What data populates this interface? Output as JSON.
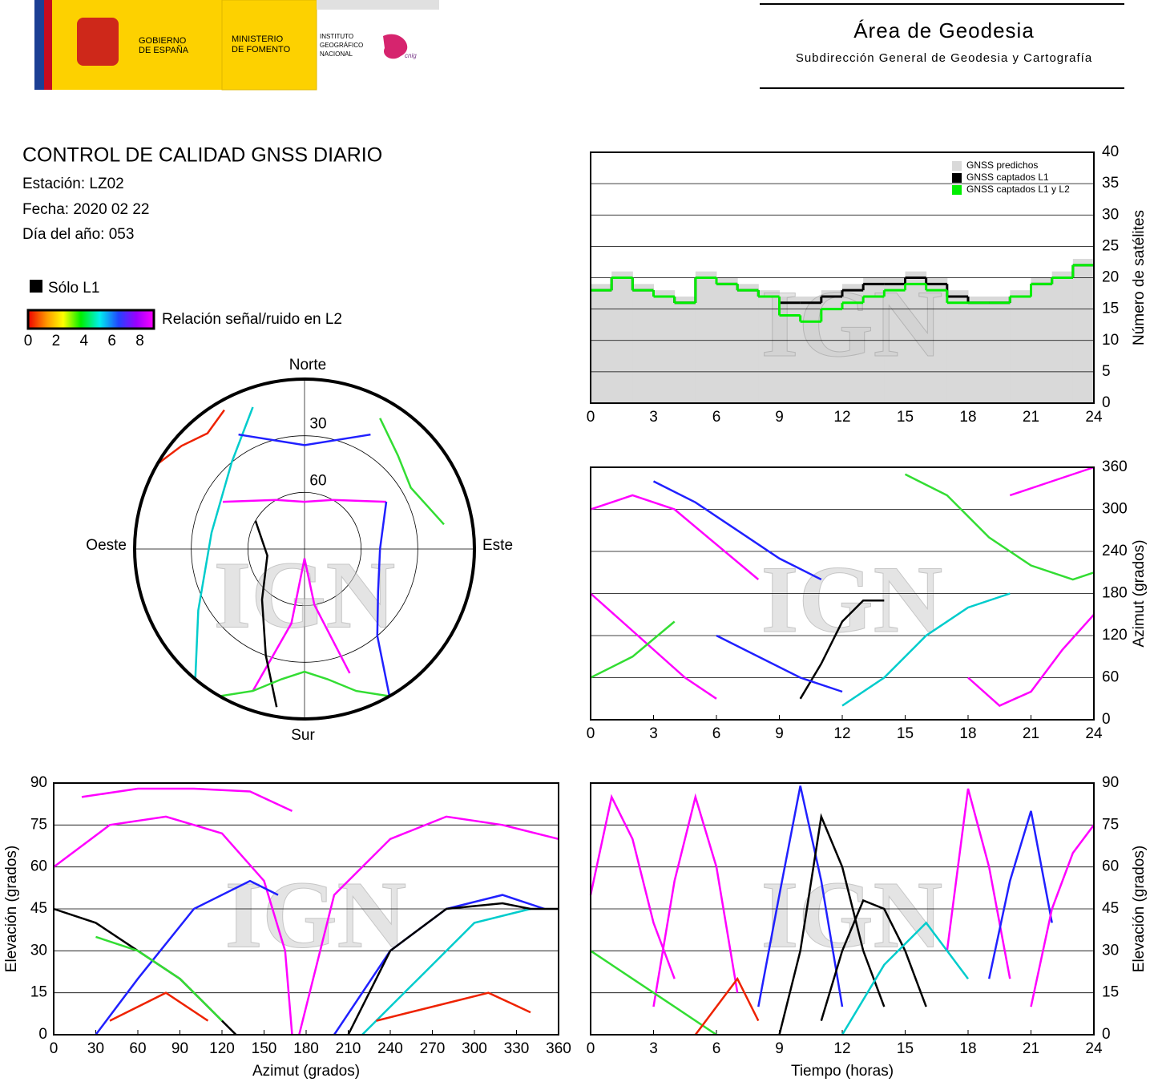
{
  "header": {
    "gobierno": [
      "GOBIERNO",
      "DE ESPAÑA"
    ],
    "ministerio": [
      "MINISTERIO",
      "DE FOMENTO"
    ],
    "instituto": [
      "INSTITUTO",
      "GEOGRÁFICO",
      "NACIONAL"
    ],
    "cnig": "cnig",
    "area": "Área de Geodesia",
    "subdireccion": "Subdirección General de Geodesia y Cartografía"
  },
  "report": {
    "title": "CONTROL DE CALIDAD GNSS DIARIO",
    "station": "Estación: LZ02",
    "date": "Fecha: 2020 02 22",
    "doy": "Día del año: 053",
    "legend_l1": "Sólo L1",
    "legend_snr": "Relación señal/ruido en L2",
    "snr_ticks": [
      0,
      2,
      4,
      6,
      8
    ],
    "snr_lim": [
      0,
      9
    ]
  },
  "watermark": "IGN",
  "chart_data": [
    {
      "type": "step",
      "ylabel": "Número de satélites",
      "y_axis": "right",
      "legend": "top-right",
      "grid": true,
      "xlim": [
        0,
        24
      ],
      "xticks": [
        0,
        3,
        6,
        9,
        12,
        15,
        18,
        21,
        24
      ],
      "ylim": [
        0,
        40
      ],
      "yticks": [
        0,
        5,
        10,
        15,
        20,
        25,
        30,
        35,
        40
      ],
      "x": [
        0,
        1,
        2,
        3,
        4,
        5,
        6,
        7,
        8,
        9,
        10,
        11,
        12,
        13,
        14,
        15,
        16,
        17,
        18,
        19,
        20,
        21,
        22,
        23
      ],
      "series": [
        {
          "name": "GNSS predichos",
          "color": "#d9d9d9",
          "style": "area",
          "values": [
            19,
            21,
            19,
            18,
            17,
            21,
            20,
            19,
            18,
            17,
            17,
            18,
            19,
            20,
            20,
            21,
            20,
            18,
            17,
            17,
            18,
            20,
            21,
            23
          ]
        },
        {
          "name": "GNSS captados L1",
          "color": "#000000",
          "style": "line",
          "values": [
            18,
            20,
            18,
            17,
            16,
            20,
            19,
            18,
            17,
            16,
            16,
            17,
            18,
            19,
            19,
            20,
            19,
            17,
            16,
            16,
            17,
            19,
            20,
            22
          ]
        },
        {
          "name": "GNSS captados L1 y L2",
          "color": "#00ee00",
          "style": "line",
          "values": [
            18,
            20,
            18,
            17,
            16,
            20,
            19,
            18,
            17,
            14,
            13,
            15,
            16,
            17,
            18,
            19,
            18,
            16,
            16,
            16,
            17,
            19,
            20,
            22
          ]
        }
      ]
    },
    {
      "type": "track",
      "ylabel": "Azimut (grados)",
      "y_axis": "right",
      "grid": true,
      "xlim": [
        0,
        24
      ],
      "xticks": [
        0,
        3,
        6,
        9,
        12,
        15,
        18,
        21,
        24
      ],
      "ylim": [
        0,
        360
      ],
      "yticks": [
        0,
        60,
        120,
        180,
        240,
        300,
        360
      ],
      "series": [
        {
          "color": "#ff00ff",
          "x": [
            0,
            2,
            4,
            6,
            8
          ],
          "values": [
            300,
            320,
            300,
            250,
            200
          ]
        },
        {
          "color": "#ff00ff",
          "x": [
            0,
            1.5,
            3,
            4.5,
            6
          ],
          "values": [
            180,
            140,
            100,
            60,
            30
          ]
        },
        {
          "color": "#000000",
          "x": [
            10,
            11,
            12,
            13,
            14
          ],
          "values": [
            30,
            80,
            140,
            170,
            170
          ]
        },
        {
          "color": "#2020ff",
          "x": [
            3,
            5,
            7,
            9,
            11
          ],
          "values": [
            340,
            310,
            270,
            230,
            200
          ]
        },
        {
          "color": "#00cccc",
          "x": [
            12,
            14,
            16,
            18,
            20
          ],
          "values": [
            20,
            60,
            120,
            160,
            180
          ]
        },
        {
          "color": "#33dd33",
          "x": [
            15,
            17,
            19,
            21,
            23,
            24
          ],
          "values": [
            350,
            320,
            260,
            220,
            200,
            210
          ]
        },
        {
          "color": "#ff00ff",
          "x": [
            18,
            19.5,
            21,
            22.5,
            24
          ],
          "values": [
            60,
            20,
            40,
            100,
            150
          ]
        },
        {
          "color": "#2020ff",
          "x": [
            6,
            8,
            10,
            12
          ],
          "values": [
            120,
            90,
            60,
            40
          ]
        },
        {
          "color": "#33dd33",
          "x": [
            0,
            2,
            4
          ],
          "values": [
            60,
            90,
            140
          ]
        },
        {
          "color": "#ff00ff",
          "x": [
            20,
            22,
            24
          ],
          "values": [
            320,
            340,
            360
          ]
        }
      ]
    },
    {
      "type": "track",
      "xlabel": "Azimut (grados)",
      "ylabel": "Elevación (grados)",
      "y_axis": "left",
      "grid": true,
      "xlim": [
        0,
        360
      ],
      "xticks": [
        0,
        30,
        60,
        90,
        120,
        150,
        180,
        210,
        240,
        270,
        300,
        330,
        360
      ],
      "ylim": [
        0,
        90
      ],
      "yticks": [
        0,
        15,
        30,
        45,
        60,
        75,
        90
      ],
      "series": [
        {
          "color": "#ff00ff",
          "x": [
            20,
            60,
            100,
            140,
            170
          ],
          "values": [
            85,
            88,
            88,
            87,
            80
          ]
        },
        {
          "color": "#ff00ff",
          "x": [
            0,
            40,
            80,
            120,
            150,
            165,
            170
          ],
          "values": [
            60,
            75,
            78,
            72,
            55,
            30,
            0
          ]
        },
        {
          "color": "#ff00ff",
          "x": [
            175,
            200,
            240,
            280,
            320,
            360
          ],
          "values": [
            0,
            50,
            70,
            78,
            75,
            70
          ]
        },
        {
          "color": "#000000",
          "x": [
            0,
            30,
            60,
            90,
            120,
            130
          ],
          "values": [
            45,
            40,
            30,
            20,
            5,
            0
          ]
        },
        {
          "color": "#2020ff",
          "x": [
            30,
            60,
            100,
            140,
            160
          ],
          "values": [
            0,
            20,
            45,
            55,
            50
          ]
        },
        {
          "color": "#2020ff",
          "x": [
            200,
            240,
            280,
            320,
            350
          ],
          "values": [
            0,
            30,
            45,
            50,
            45
          ]
        },
        {
          "color": "#00cccc",
          "x": [
            220,
            260,
            300,
            340
          ],
          "values": [
            0,
            20,
            40,
            45
          ]
        },
        {
          "color": "#33dd33",
          "x": [
            30,
            60,
            90,
            120
          ],
          "values": [
            35,
            30,
            20,
            5
          ]
        },
        {
          "color": "#ee2200",
          "x": [
            230,
            270,
            310,
            340
          ],
          "values": [
            5,
            10,
            15,
            8
          ]
        },
        {
          "color": "#ee2200",
          "x": [
            40,
            80,
            110
          ],
          "values": [
            5,
            15,
            5
          ]
        },
        {
          "color": "#000000",
          "x": [
            210,
            240,
            280,
            320,
            340,
            360
          ],
          "values": [
            0,
            30,
            45,
            47,
            45,
            45
          ]
        }
      ]
    },
    {
      "type": "track",
      "xlabel": "Tiempo (horas)",
      "ylabel": "Elevación (grados)",
      "y_axis": "right",
      "grid": true,
      "xlim": [
        0,
        24
      ],
      "xticks": [
        0,
        3,
        6,
        9,
        12,
        15,
        18,
        21,
        24
      ],
      "ylim": [
        0,
        90
      ],
      "yticks": [
        0,
        15,
        30,
        45,
        60,
        75,
        90
      ],
      "series": [
        {
          "color": "#ff00ff",
          "x": [
            0,
            1,
            2,
            3,
            4
          ],
          "values": [
            50,
            85,
            70,
            40,
            20
          ]
        },
        {
          "color": "#ff00ff",
          "x": [
            3,
            4,
            5,
            6,
            7
          ],
          "values": [
            10,
            55,
            85,
            60,
            15
          ]
        },
        {
          "color": "#2020ff",
          "x": [
            8,
            9,
            10,
            11,
            12
          ],
          "values": [
            10,
            50,
            89,
            55,
            10
          ]
        },
        {
          "color": "#000000",
          "x": [
            9,
            10,
            11,
            12,
            13,
            14
          ],
          "values": [
            0,
            30,
            78,
            60,
            30,
            10
          ]
        },
        {
          "color": "#000000",
          "x": [
            11,
            12,
            13,
            14,
            15,
            16
          ],
          "values": [
            5,
            30,
            48,
            45,
            30,
            10
          ]
        },
        {
          "color": "#ff00ff",
          "x": [
            17,
            18,
            19,
            20
          ],
          "values": [
            30,
            88,
            60,
            20
          ]
        },
        {
          "color": "#2020ff",
          "x": [
            19,
            20,
            21,
            22
          ],
          "values": [
            20,
            55,
            80,
            40
          ]
        },
        {
          "color": "#33dd33",
          "x": [
            0,
            2,
            4,
            6
          ],
          "values": [
            30,
            20,
            10,
            0
          ]
        },
        {
          "color": "#00cccc",
          "x": [
            12,
            14,
            16,
            18
          ],
          "values": [
            0,
            25,
            40,
            20
          ]
        },
        {
          "color": "#ff00ff",
          "x": [
            21,
            22,
            23,
            24
          ],
          "values": [
            10,
            45,
            65,
            75
          ]
        },
        {
          "color": "#ee2200",
          "x": [
            5,
            6,
            7,
            8
          ],
          "values": [
            0,
            10,
            20,
            5
          ]
        }
      ]
    },
    {
      "type": "polar",
      "north": "Norte",
      "south": "Sur",
      "east": "Este",
      "west": "Oeste",
      "rlim": [
        0,
        90
      ],
      "rticks": [
        30,
        60
      ],
      "series": [
        {
          "color": "#ff00ff",
          "x": [
            300,
            330,
            0,
            30,
            60
          ],
          "values": [
            40,
            60,
            65,
            60,
            40
          ]
        },
        {
          "color": "#ff00ff",
          "x": [
            200,
            190,
            180,
            170,
            160
          ],
          "values": [
            10,
            50,
            85,
            60,
            20
          ]
        },
        {
          "color": "#000000",
          "x": [
            190,
            200,
            220,
            260,
            300
          ],
          "values": [
            5,
            30,
            55,
            70,
            60
          ]
        },
        {
          "color": "#2020ff",
          "x": [
            150,
            140,
            120,
            90,
            60
          ],
          "values": [
            0,
            30,
            45,
            50,
            40
          ]
        },
        {
          "color": "#00cccc",
          "x": [
            220,
            240,
            280,
            320,
            340
          ],
          "values": [
            0,
            25,
            40,
            30,
            10
          ]
        },
        {
          "color": "#33dd33",
          "x": [
            30,
            45,
            60,
            80
          ],
          "values": [
            10,
            20,
            25,
            15
          ]
        },
        {
          "color": "#ee2200",
          "x": [
            300,
            310,
            320,
            330
          ],
          "values": [
            0,
            5,
            10,
            5
          ]
        },
        {
          "color": "#33dd33",
          "x": [
            150,
            160,
            170,
            180,
            190,
            200,
            210
          ],
          "values": [
            0,
            10,
            20,
            25,
            20,
            10,
            0
          ]
        },
        {
          "color": "#2020ff",
          "x": [
            330,
            0,
            30
          ],
          "values": [
            20,
            35,
            20
          ]
        }
      ]
    }
  ]
}
